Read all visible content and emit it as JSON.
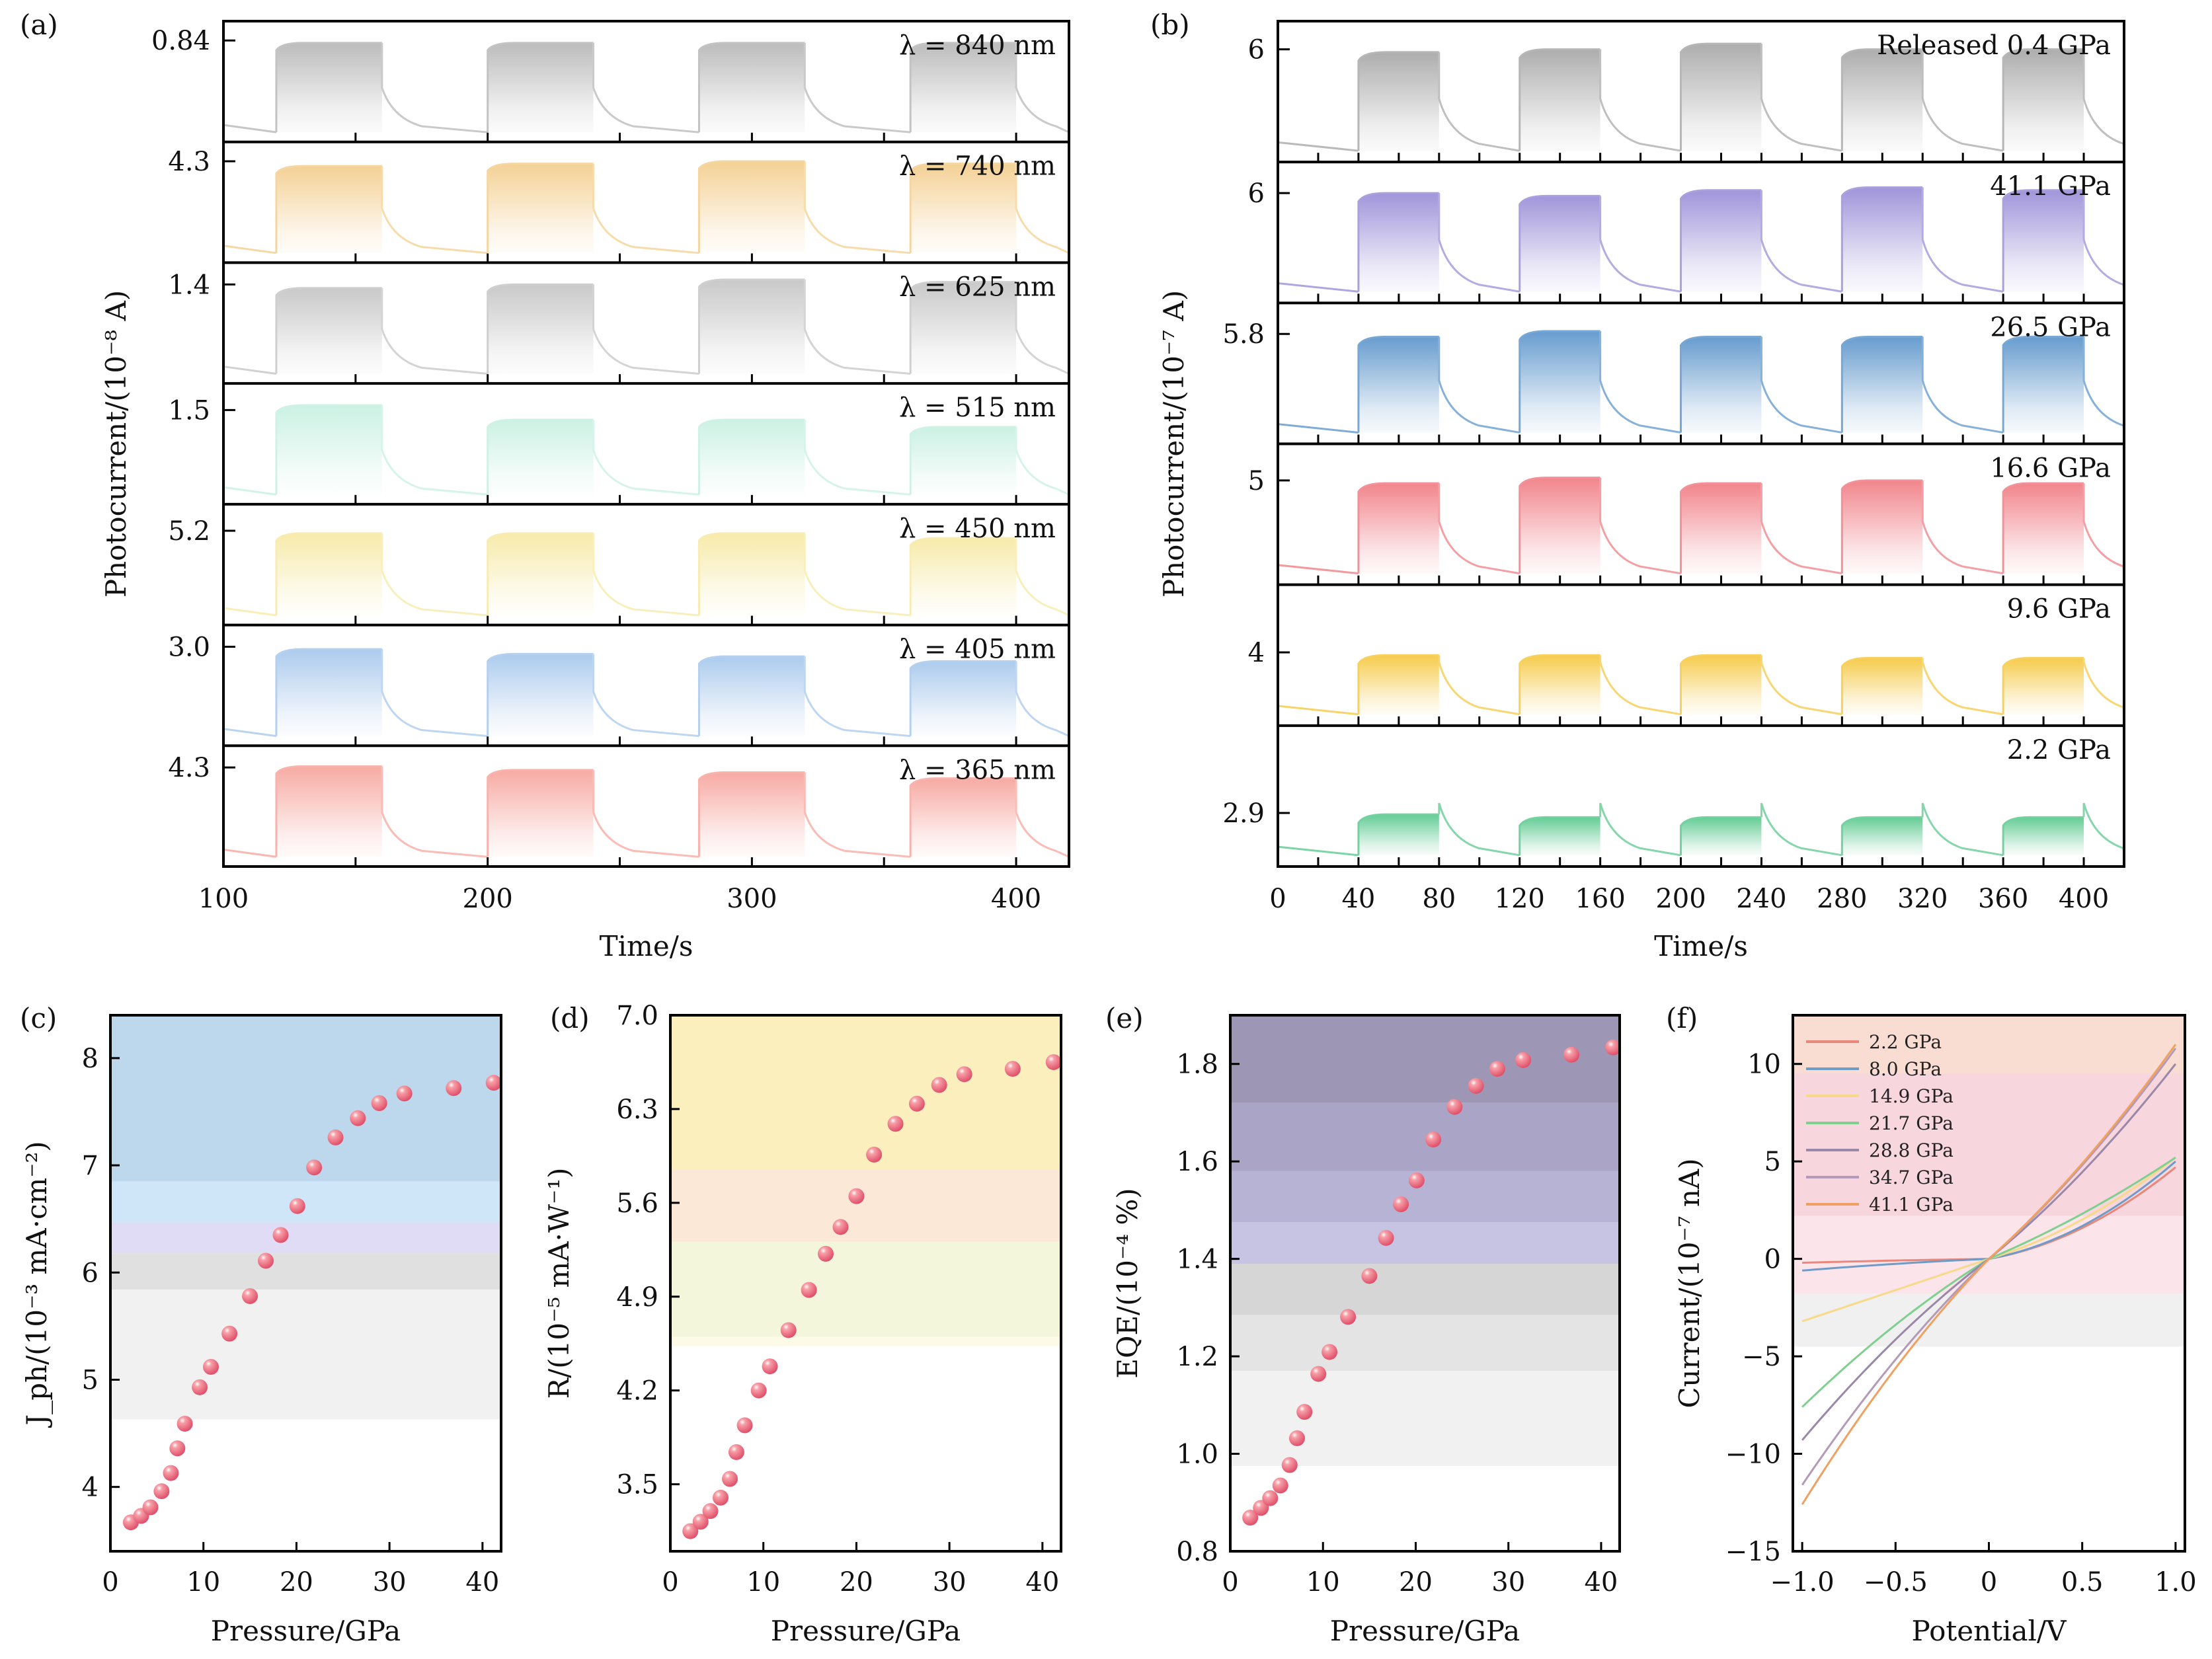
{
  "figure": {
    "panel_labels": [
      "(a)",
      "(b)",
      "(c)",
      "(d)",
      "(e)",
      "(f)"
    ]
  },
  "chart_data": [
    {
      "id": "a",
      "type": "area",
      "title": "",
      "xlabel": "Time/s",
      "ylabel": "Photocurrent/(10⁻⁸ A)",
      "xlim": [
        100,
        420
      ],
      "xticks": [
        100,
        200,
        300,
        400
      ],
      "xticks_minor": [
        150,
        250,
        350
      ],
      "light_on_intervals": [
        [
          120,
          160
        ],
        [
          200,
          240
        ],
        [
          280,
          320
        ],
        [
          360,
          400
        ]
      ],
      "series": [
        {
          "name": "λ = 840 nm",
          "ytick": "0.84",
          "color": "#b8b8b8",
          "on_level": 0.82,
          "peaks": [
            0.82,
            0.82,
            0.82,
            0.82
          ]
        },
        {
          "name": "λ = 740 nm",
          "ytick": "4.3",
          "color": "#f3cf8f",
          "on_level": 0.82,
          "peaks": [
            0.8,
            0.82,
            0.84,
            0.82
          ]
        },
        {
          "name": "λ = 625 nm",
          "ytick": "1.4",
          "color": "#c6c6c6",
          "on_level": 0.8,
          "peaks": [
            0.79,
            0.82,
            0.86,
            0.84
          ]
        },
        {
          "name": "λ = 515 nm",
          "ytick": "1.5",
          "color": "#c8f0e2",
          "on_level": 0.76,
          "peaks": [
            0.82,
            0.7,
            0.7,
            0.64
          ]
        },
        {
          "name": "λ = 450 nm",
          "ytick": "5.2",
          "color": "#f7e9a6",
          "on_level": 0.76,
          "peaks": [
            0.76,
            0.76,
            0.76,
            0.72
          ]
        },
        {
          "name": "λ = 405 nm",
          "ytick": "3.0",
          "color": "#a8c8ec",
          "on_level": 0.8,
          "peaks": [
            0.8,
            0.76,
            0.74,
            0.7
          ]
        },
        {
          "name": "λ = 365 nm",
          "ytick": "4.3",
          "color": "#f7a59e",
          "on_level": 0.8,
          "peaks": [
            0.83,
            0.8,
            0.78,
            0.73
          ]
        }
      ]
    },
    {
      "id": "b",
      "type": "area",
      "title": "",
      "xlabel": "Time/s",
      "ylabel": "Photocurrent/(10⁻⁷ A)",
      "xlim": [
        0,
        420
      ],
      "xticks": [
        0,
        40,
        80,
        120,
        160,
        200,
        240,
        280,
        320,
        360,
        400
      ],
      "xticks_minor": [
        20,
        60,
        100,
        140,
        180,
        220,
        260,
        300,
        340,
        380
      ],
      "light_on_intervals": [
        [
          40,
          80
        ],
        [
          120,
          160
        ],
        [
          200,
          240
        ],
        [
          280,
          320
        ],
        [
          360,
          400
        ]
      ],
      "series": [
        {
          "name": "Released  0.4 GPa",
          "ytick": "6",
          "color": "#a9a9a9",
          "on_level": 0.78,
          "peaks": [
            0.78,
            0.8,
            0.84,
            0.8,
            0.8
          ]
        },
        {
          "name": "41.1 GPa",
          "ytick": "6",
          "color": "#9b8fd8",
          "on_level": 0.76,
          "peaks": [
            0.78,
            0.76,
            0.8,
            0.82,
            0.8
          ]
        },
        {
          "name": "26.5 GPa",
          "ytick": "5.8",
          "color": "#5f97cc",
          "on_level": 0.76,
          "peaks": [
            0.76,
            0.8,
            0.76,
            0.76,
            0.76
          ]
        },
        {
          "name": "16.6 GPa",
          "ytick": "5",
          "color": "#f07f86",
          "on_level": 0.72,
          "peaks": [
            0.72,
            0.76,
            0.72,
            0.74,
            0.72
          ]
        },
        {
          "name": "9.6 GPa",
          "ytick": "4",
          "color": "#f5c842",
          "on_level": 0.5,
          "peaks": [
            0.5,
            0.5,
            0.5,
            0.48,
            0.48
          ]
        },
        {
          "name": "2.2 GPa",
          "ytick": "2.9",
          "color": "#5cc98f",
          "on_level": 0.36,
          "peaks": [
            0.37,
            0.35,
            0.35,
            0.35,
            0.35
          ]
        }
      ]
    },
    {
      "id": "c",
      "type": "scatter",
      "xlabel": "Pressure/GPa",
      "ylabel": "J_ph/(10⁻³ mA·cm⁻²)",
      "xlim": [
        0,
        42
      ],
      "ylim": [
        3.4,
        8.4
      ],
      "xticks": [
        0,
        10,
        20,
        30,
        40
      ],
      "yticks": [
        4,
        5,
        6,
        7,
        8
      ],
      "x": [
        2.2,
        3.3,
        4.3,
        5.5,
        6.5,
        7.2,
        8.0,
        9.6,
        10.8,
        12.8,
        15.0,
        16.7,
        18.3,
        20.1,
        21.9,
        24.2,
        26.6,
        28.9,
        31.6,
        36.9,
        41.2
      ],
      "y": [
        3.67,
        3.73,
        3.81,
        3.96,
        4.13,
        4.36,
        4.59,
        4.93,
        5.12,
        5.43,
        5.78,
        6.11,
        6.35,
        6.62,
        6.98,
        7.26,
        7.44,
        7.58,
        7.67,
        7.72,
        7.77
      ],
      "bands": [
        {
          "from": 6.85,
          "to": 8.4,
          "color": "#bdd7ec"
        },
        {
          "from": 6.47,
          "to": 6.85,
          "color": "#cfe6f9"
        },
        {
          "from": 6.18,
          "to": 6.47,
          "color": "#e1dcf6"
        },
        {
          "from": 5.84,
          "to": 6.18,
          "color": "#e0e0e0"
        },
        {
          "from": 4.63,
          "to": 5.84,
          "color": "#f1f1f1"
        }
      ]
    },
    {
      "id": "d",
      "type": "scatter",
      "xlabel": "Pressure/GPa",
      "ylabel": "R/(10⁻⁵ mA·W⁻¹)",
      "xlim": [
        0,
        42
      ],
      "ylim": [
        3.0,
        7.0
      ],
      "xticks": [
        0,
        10,
        20,
        30,
        40
      ],
      "yticks": [
        "3.5",
        "4.2",
        "4.9",
        "5.6",
        "6.3",
        "7.0"
      ],
      "x": [
        2.15,
        3.25,
        4.3,
        5.4,
        6.4,
        7.1,
        8.0,
        9.5,
        10.7,
        12.7,
        14.9,
        16.7,
        18.3,
        20.0,
        21.9,
        24.2,
        26.5,
        28.9,
        31.6,
        36.8,
        41.2
      ],
      "y": [
        3.15,
        3.22,
        3.3,
        3.4,
        3.54,
        3.74,
        3.94,
        4.2,
        4.38,
        4.65,
        4.95,
        5.22,
        5.42,
        5.65,
        5.96,
        6.19,
        6.34,
        6.48,
        6.56,
        6.6,
        6.65
      ],
      "bands": [
        {
          "from": 5.85,
          "to": 7.0,
          "color": "#fbefbe"
        },
        {
          "from": 5.31,
          "to": 5.85,
          "color": "#fbe8d6"
        },
        {
          "from": 4.6,
          "to": 5.31,
          "color": "#f3f6db"
        },
        {
          "from": 4.53,
          "to": 4.6,
          "color": "#fdfbe8"
        }
      ]
    },
    {
      "id": "e",
      "type": "scatter",
      "xlabel": "Pressure/GPa",
      "ylabel": "EQE/(10⁻⁴ %)",
      "xlim": [
        0,
        42
      ],
      "ylim": [
        0.8,
        1.9
      ],
      "xticks": [
        0,
        10,
        20,
        30,
        40
      ],
      "yticks": [
        "0.8",
        "1.0",
        "1.2",
        "1.4",
        "1.6",
        "1.8"
      ],
      "x": [
        2.15,
        3.3,
        4.3,
        5.4,
        6.4,
        7.2,
        8.0,
        9.5,
        10.7,
        12.7,
        15.0,
        16.8,
        18.4,
        20.1,
        21.9,
        24.2,
        26.5,
        28.8,
        31.6,
        36.8,
        41.3
      ],
      "y": [
        0.869,
        0.889,
        0.909,
        0.935,
        0.977,
        1.032,
        1.086,
        1.164,
        1.209,
        1.281,
        1.365,
        1.443,
        1.512,
        1.561,
        1.645,
        1.712,
        1.755,
        1.79,
        1.808,
        1.819,
        1.834
      ],
      "bands": [
        {
          "from": 1.72,
          "to": 1.9,
          "color": "#9d97b5"
        },
        {
          "from": 1.58,
          "to": 1.72,
          "color": "#aaa5c6"
        },
        {
          "from": 1.475,
          "to": 1.58,
          "color": "#b7b3d4"
        },
        {
          "from": 1.39,
          "to": 1.475,
          "color": "#c6c3e3"
        },
        {
          "from": 1.285,
          "to": 1.39,
          "color": "#d6d6d6"
        },
        {
          "from": 1.17,
          "to": 1.285,
          "color": "#e4e4e4"
        },
        {
          "from": 0.975,
          "to": 1.17,
          "color": "#f1f1f1"
        }
      ]
    },
    {
      "id": "f",
      "type": "line",
      "xlabel": "Potential/V",
      "ylabel": "Current/(10⁻⁷ nA)",
      "xlim": [
        -1.05,
        1.05
      ],
      "ylim": [
        -15,
        12.5
      ],
      "xticks": [
        -1.0,
        -0.5,
        0,
        0.5,
        1.0
      ],
      "xtick_labels": [
        "−1.0",
        "−0.5",
        "0",
        "0.5",
        "1.0"
      ],
      "yticks": [
        -15,
        -10,
        -5,
        0,
        5,
        10
      ],
      "ytick_labels": [
        "−15",
        "−10",
        "−5",
        "0",
        "5",
        "10"
      ],
      "legend_position": "top-left",
      "series": [
        {
          "name": "2.2 GPa",
          "color": "#e8877a",
          "i_neg1": -0.2,
          "i_pos1": 4.7,
          "shape": "diode"
        },
        {
          "name": "8.0 GPa",
          "color": "#6f9bc9",
          "i_neg1": -0.6,
          "i_pos1": 5.0,
          "shape": "diode"
        },
        {
          "name": "14.9 GPa",
          "color": "#f7d98a",
          "i_neg1": -3.2,
          "i_pos1": 5.2,
          "shape": "mild"
        },
        {
          "name": "21.7 GPa",
          "color": "#7fcf8f",
          "i_neg1": -7.6,
          "i_pos1": 5.2,
          "shape": "ohmic"
        },
        {
          "name": "28.8 GPa",
          "color": "#9a88a8",
          "i_neg1": -9.3,
          "i_pos1": 10.0,
          "shape": "ohmic"
        },
        {
          "name": "34.7 GPa",
          "color": "#b39ab8",
          "i_neg1": -11.6,
          "i_pos1": 10.8,
          "shape": "ohmic"
        },
        {
          "name": "41.1 GPa",
          "color": "#f0a060",
          "i_neg1": -12.6,
          "i_pos1": 11.0,
          "shape": "ohmic"
        }
      ],
      "bands": [
        {
          "from": 9.5,
          "to": 12.5,
          "color": "#f9dcd2"
        },
        {
          "from": 2.2,
          "to": 9.5,
          "color": "#f7d6de"
        },
        {
          "from": -1.8,
          "to": 2.2,
          "color": "#fbe4ea"
        },
        {
          "from": -4.5,
          "to": -1.8,
          "color": "#f0f0f0"
        }
      ]
    }
  ]
}
